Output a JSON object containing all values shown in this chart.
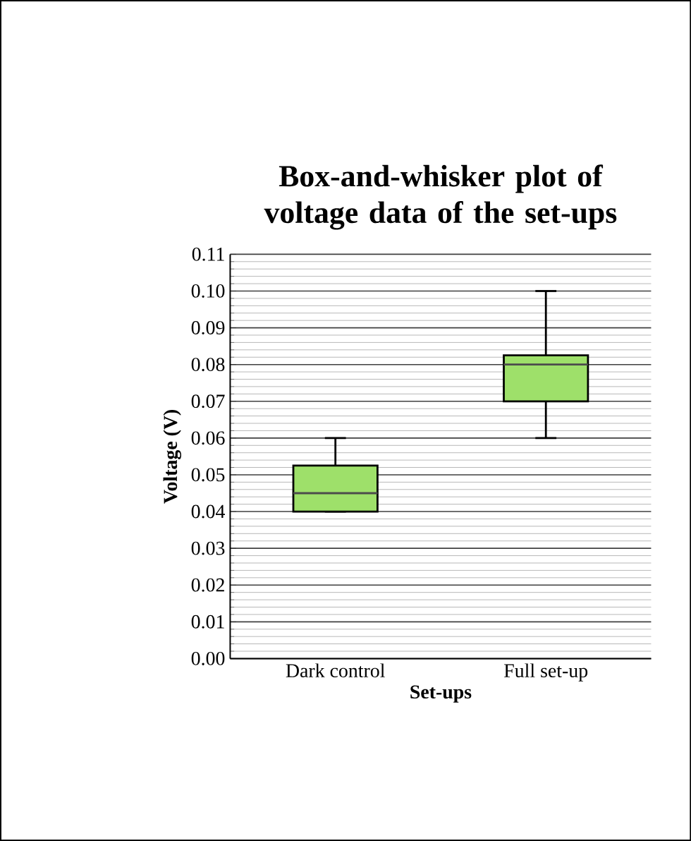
{
  "chart_data": {
    "type": "box",
    "title": "Box-and-whisker plot of voltage data of the set-ups",
    "xlabel": "Set-ups",
    "ylabel": "Voltage (V)",
    "categories": [
      "Dark control",
      "Full set-up"
    ],
    "boxes": [
      {
        "low": 0.04,
        "q1": 0.04,
        "median": 0.045,
        "q3": 0.0525,
        "high": 0.06
      },
      {
        "low": 0.06,
        "q1": 0.07,
        "median": 0.08,
        "q3": 0.0825,
        "high": 0.1
      }
    ],
    "color": "#9ee06a",
    "ylim": [
      0,
      0.11
    ],
    "yticks": [
      {
        "value": 0,
        "label": "0.00"
      },
      {
        "value": 0.01,
        "label": "0.01"
      },
      {
        "value": 0.02,
        "label": "0.02"
      },
      {
        "value": 0.03,
        "label": "0.03"
      },
      {
        "value": 0.04,
        "label": "0.04"
      },
      {
        "value": 0.05,
        "label": "0.05"
      },
      {
        "value": 0.06,
        "label": "0.06"
      },
      {
        "value": 0.07,
        "label": "0.07"
      },
      {
        "value": 0.08,
        "label": "0.08"
      },
      {
        "value": 0.09,
        "label": "0.09"
      },
      {
        "value": 0.1,
        "label": "0.10"
      },
      {
        "value": 0.11,
        "label": "0.11"
      }
    ],
    "grid": true
  }
}
